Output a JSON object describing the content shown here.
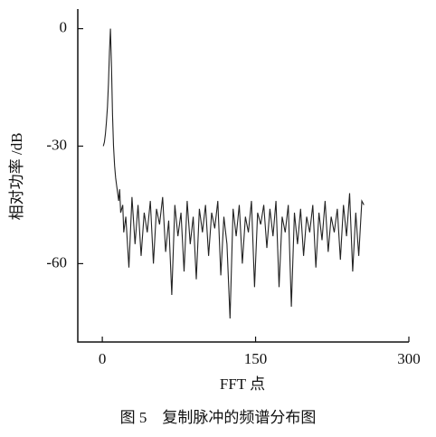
{
  "chart_data": {
    "type": "line",
    "x_label": "FFT 点",
    "y_label": "相对功率 /dB",
    "caption": "图 5　复制脉冲的频谱分布图",
    "xlim": [
      -24,
      300
    ],
    "xticks": [
      0,
      150,
      300
    ],
    "ylim": [
      -80,
      5
    ],
    "yticks": [
      0,
      -30,
      -60
    ],
    "series": [
      {
        "color": "#222222",
        "x": [
          1,
          2,
          3,
          4,
          5,
          6,
          7,
          8,
          9,
          10,
          11,
          12,
          13,
          14,
          15,
          16,
          17,
          18,
          20,
          21,
          23,
          26,
          29,
          32,
          35,
          38,
          41,
          44,
          47,
          50,
          53,
          56,
          59,
          62,
          65,
          68,
          71,
          74,
          77,
          80,
          83,
          86,
          89,
          92,
          95,
          98,
          101,
          104,
          107,
          110,
          113,
          116,
          119,
          122,
          125,
          128,
          131,
          134,
          137,
          140,
          143,
          146,
          149,
          152,
          155,
          158,
          161,
          164,
          167,
          170,
          173,
          176,
          179,
          182,
          185,
          188,
          191,
          194,
          197,
          200,
          203,
          206,
          209,
          212,
          215,
          218,
          221,
          224,
          227,
          230,
          233,
          236,
          239,
          242,
          245,
          248,
          251,
          254,
          256
        ],
        "values": [
          -30,
          -29,
          -27,
          -24,
          -20,
          -14,
          -6,
          0,
          -10,
          -22,
          -30,
          -35,
          -38,
          -40,
          -42,
          -44,
          -41,
          -47,
          -45,
          -52,
          -48,
          -61,
          -43,
          -55,
          -45,
          -58,
          -47,
          -52,
          -44,
          -60,
          -46,
          -50,
          -43,
          -57,
          -49,
          -68,
          -45,
          -53,
          -47,
          -62,
          -44,
          -55,
          -48,
          -64,
          -46,
          -52,
          -45,
          -58,
          -47,
          -51,
          -44,
          -63,
          -48,
          -55,
          -74,
          -46,
          -53,
          -45,
          -60,
          -48,
          -52,
          -44,
          -66,
          -47,
          -50,
          -45,
          -56,
          -46,
          -53,
          -44,
          -66,
          -48,
          -52,
          -45,
          -71,
          -47,
          -55,
          -46,
          -58,
          -48,
          -52,
          -45,
          -61,
          -47,
          -54,
          -44,
          -57,
          -48,
          -52,
          -46,
          -59,
          -45,
          -53,
          -42,
          -62,
          -47,
          -58,
          -44,
          -45
        ]
      }
    ]
  }
}
